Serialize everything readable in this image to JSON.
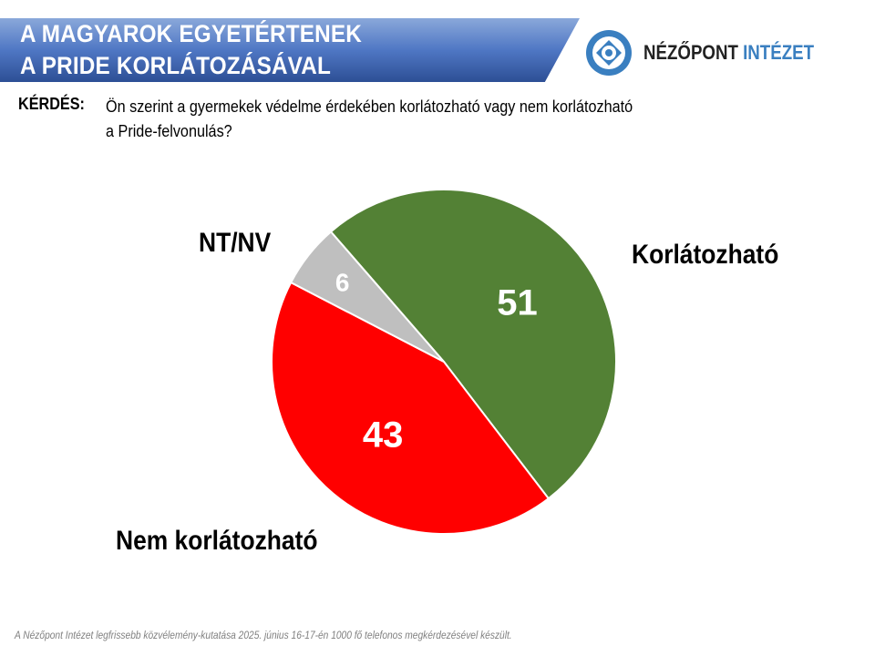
{
  "header": {
    "title_line1": "A MAGYAROK EGYETÉRTENEK",
    "title_line2": "A PRIDE KORLÁTOZÁSÁVAL"
  },
  "logo": {
    "part1": "NÉZŐPONT",
    "part2": "INTÉZET"
  },
  "question": {
    "label": "KÉRDÉS:",
    "line1": "Ön szerint a gyermekek védelme érdekében korlátozható vagy nem korlátozható",
    "line2": "a Pride-felvonulás?"
  },
  "chart_data": {
    "type": "pie",
    "title": "A MAGYAROK EGYETÉRTENEK A PRIDE KORLÁTOZÁSÁVAL",
    "slices": [
      {
        "label": "Korlátozható",
        "value": 51,
        "color": "#538135"
      },
      {
        "label": "Nem korlátozható",
        "value": 43,
        "color": "#ff0000"
      },
      {
        "label": "NT/NV",
        "value": 6,
        "color": "#bfbfbf"
      }
    ],
    "start_angle_deg": -41
  },
  "footer": "A Nézőpont Intézet legfrissebb közvélemény-kutatása 2025. június 16-17-én 1000 fő telefonos megkérdezésével készült."
}
